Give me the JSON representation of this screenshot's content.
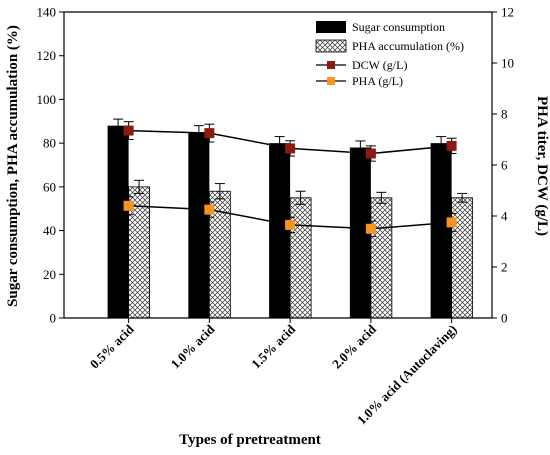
{
  "chart_data": {
    "type": "bar",
    "xlabel": "Types of pretreatment",
    "ylabel_left": "Sugar consumption, PHA accumulation (%)",
    "ylabel_right": "PHA titer, DCW (g/L)",
    "ylim_left": [
      0,
      140
    ],
    "ylim_right": [
      0,
      12
    ],
    "yticks_left": [
      "0",
      "20",
      "40",
      "60",
      "80",
      "100",
      "120",
      "140"
    ],
    "yticks_right": [
      "0",
      "2",
      "4",
      "6",
      "8",
      "10",
      "12"
    ],
    "categories": [
      "0.5% acid",
      "1.0% acid",
      "1.5% acid",
      "2.0% acid",
      "1.0% acid (Autoclaving)"
    ],
    "legend_position": "top-right",
    "grid": false,
    "series": [
      {
        "name": "Sugar consumption",
        "kind": "bar",
        "axis": "left",
        "color": "#000000",
        "values": [
          88,
          85,
          80,
          78,
          80
        ],
        "errors": [
          3,
          3,
          3,
          3,
          3
        ]
      },
      {
        "name": "PHA accumulation (%)",
        "kind": "bar",
        "axis": "left",
        "pattern": "crosshatch",
        "values": [
          60,
          58,
          55,
          55,
          55
        ],
        "errors": [
          3,
          3.5,
          3,
          2.5,
          2
        ]
      },
      {
        "name": "DCW (g/L)",
        "kind": "line",
        "axis": "right",
        "color": "#8b1a10",
        "values": [
          7.35,
          7.25,
          6.65,
          6.45,
          6.75
        ],
        "errors": [
          0.35,
          0.35,
          0.3,
          0.3,
          0.3
        ]
      },
      {
        "name": "PHA (g/L)",
        "kind": "line",
        "axis": "right",
        "color": "#f7941d",
        "values": [
          4.4,
          4.25,
          3.65,
          3.5,
          3.75
        ],
        "errors": [
          0.35,
          0.3,
          0.3,
          0.3,
          0.35
        ]
      }
    ]
  }
}
